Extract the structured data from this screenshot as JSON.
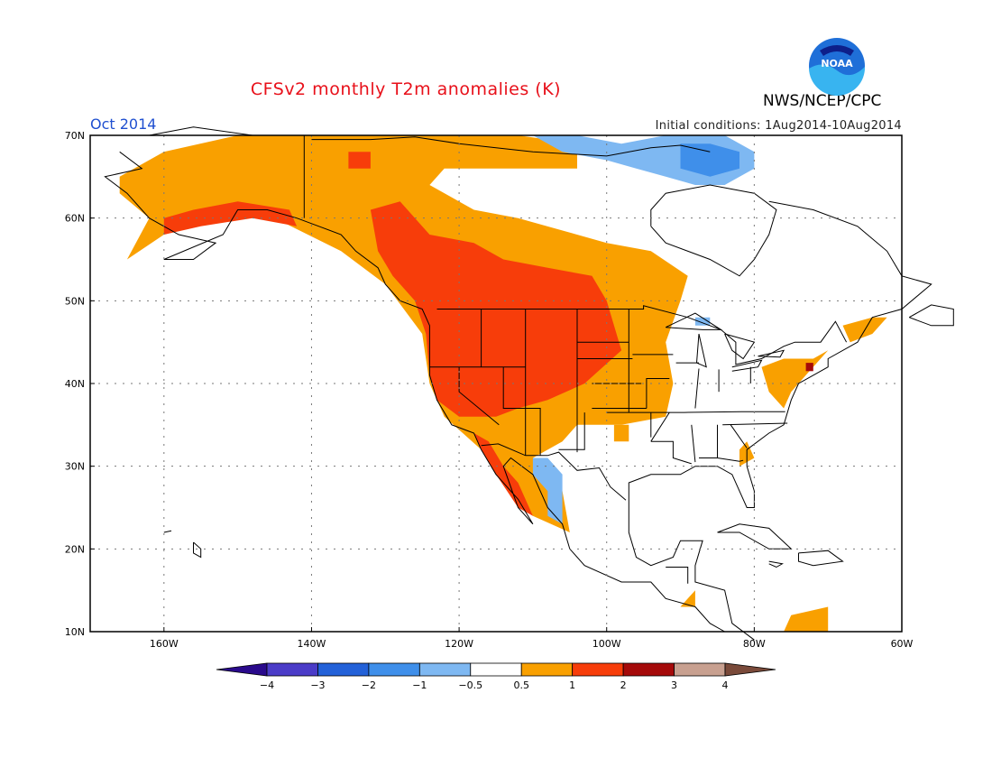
{
  "title": "CFSv2 monthly T2m anomalies (K)",
  "org": "NWS/NCEP/CPC",
  "logo_text": "NOAA",
  "period": "Oct 2014",
  "initial_conditions": "Initial conditions: 1Aug2014-10Aug2014",
  "map": {
    "lon_range": [
      -170,
      -60
    ],
    "lat_range": [
      10,
      70
    ],
    "lat_ticks": [
      {
        "value": 70,
        "label": "70N"
      },
      {
        "value": 60,
        "label": "60N"
      },
      {
        "value": 50,
        "label": "50N"
      },
      {
        "value": 40,
        "label": "40N"
      },
      {
        "value": 30,
        "label": "30N"
      },
      {
        "value": 20,
        "label": "20N"
      },
      {
        "value": 10,
        "label": "10N"
      }
    ],
    "lon_ticks": [
      {
        "value": -160,
        "label": "160W"
      },
      {
        "value": -140,
        "label": "140W"
      },
      {
        "value": -120,
        "label": "120W"
      },
      {
        "value": -100,
        "label": "100W"
      },
      {
        "value": -80,
        "label": "80W"
      },
      {
        "value": -60,
        "label": "60W"
      }
    ],
    "gridlines": "dotted"
  },
  "colorbar": {
    "boundaries": [
      "−4",
      "−3",
      "−2",
      "−1",
      "−0.5",
      "0.5",
      "1",
      "2",
      "3",
      "4"
    ],
    "colors": [
      "#2a0a8c",
      "#4b3cc8",
      "#2361d8",
      "#3f8fea",
      "#7eb8f2",
      "#ffffff",
      "#f9a000",
      "#f73d0a",
      "#a50a0a",
      "#c8a090",
      "#7a4a3a"
    ]
  },
  "anomaly_colors": {
    "cool_2": "#3f8fea",
    "cool_1": "#7eb8f2",
    "warm_1": "#f9a000",
    "warm_2": "#f73d0a",
    "warm_3": "#a50a0a"
  }
}
